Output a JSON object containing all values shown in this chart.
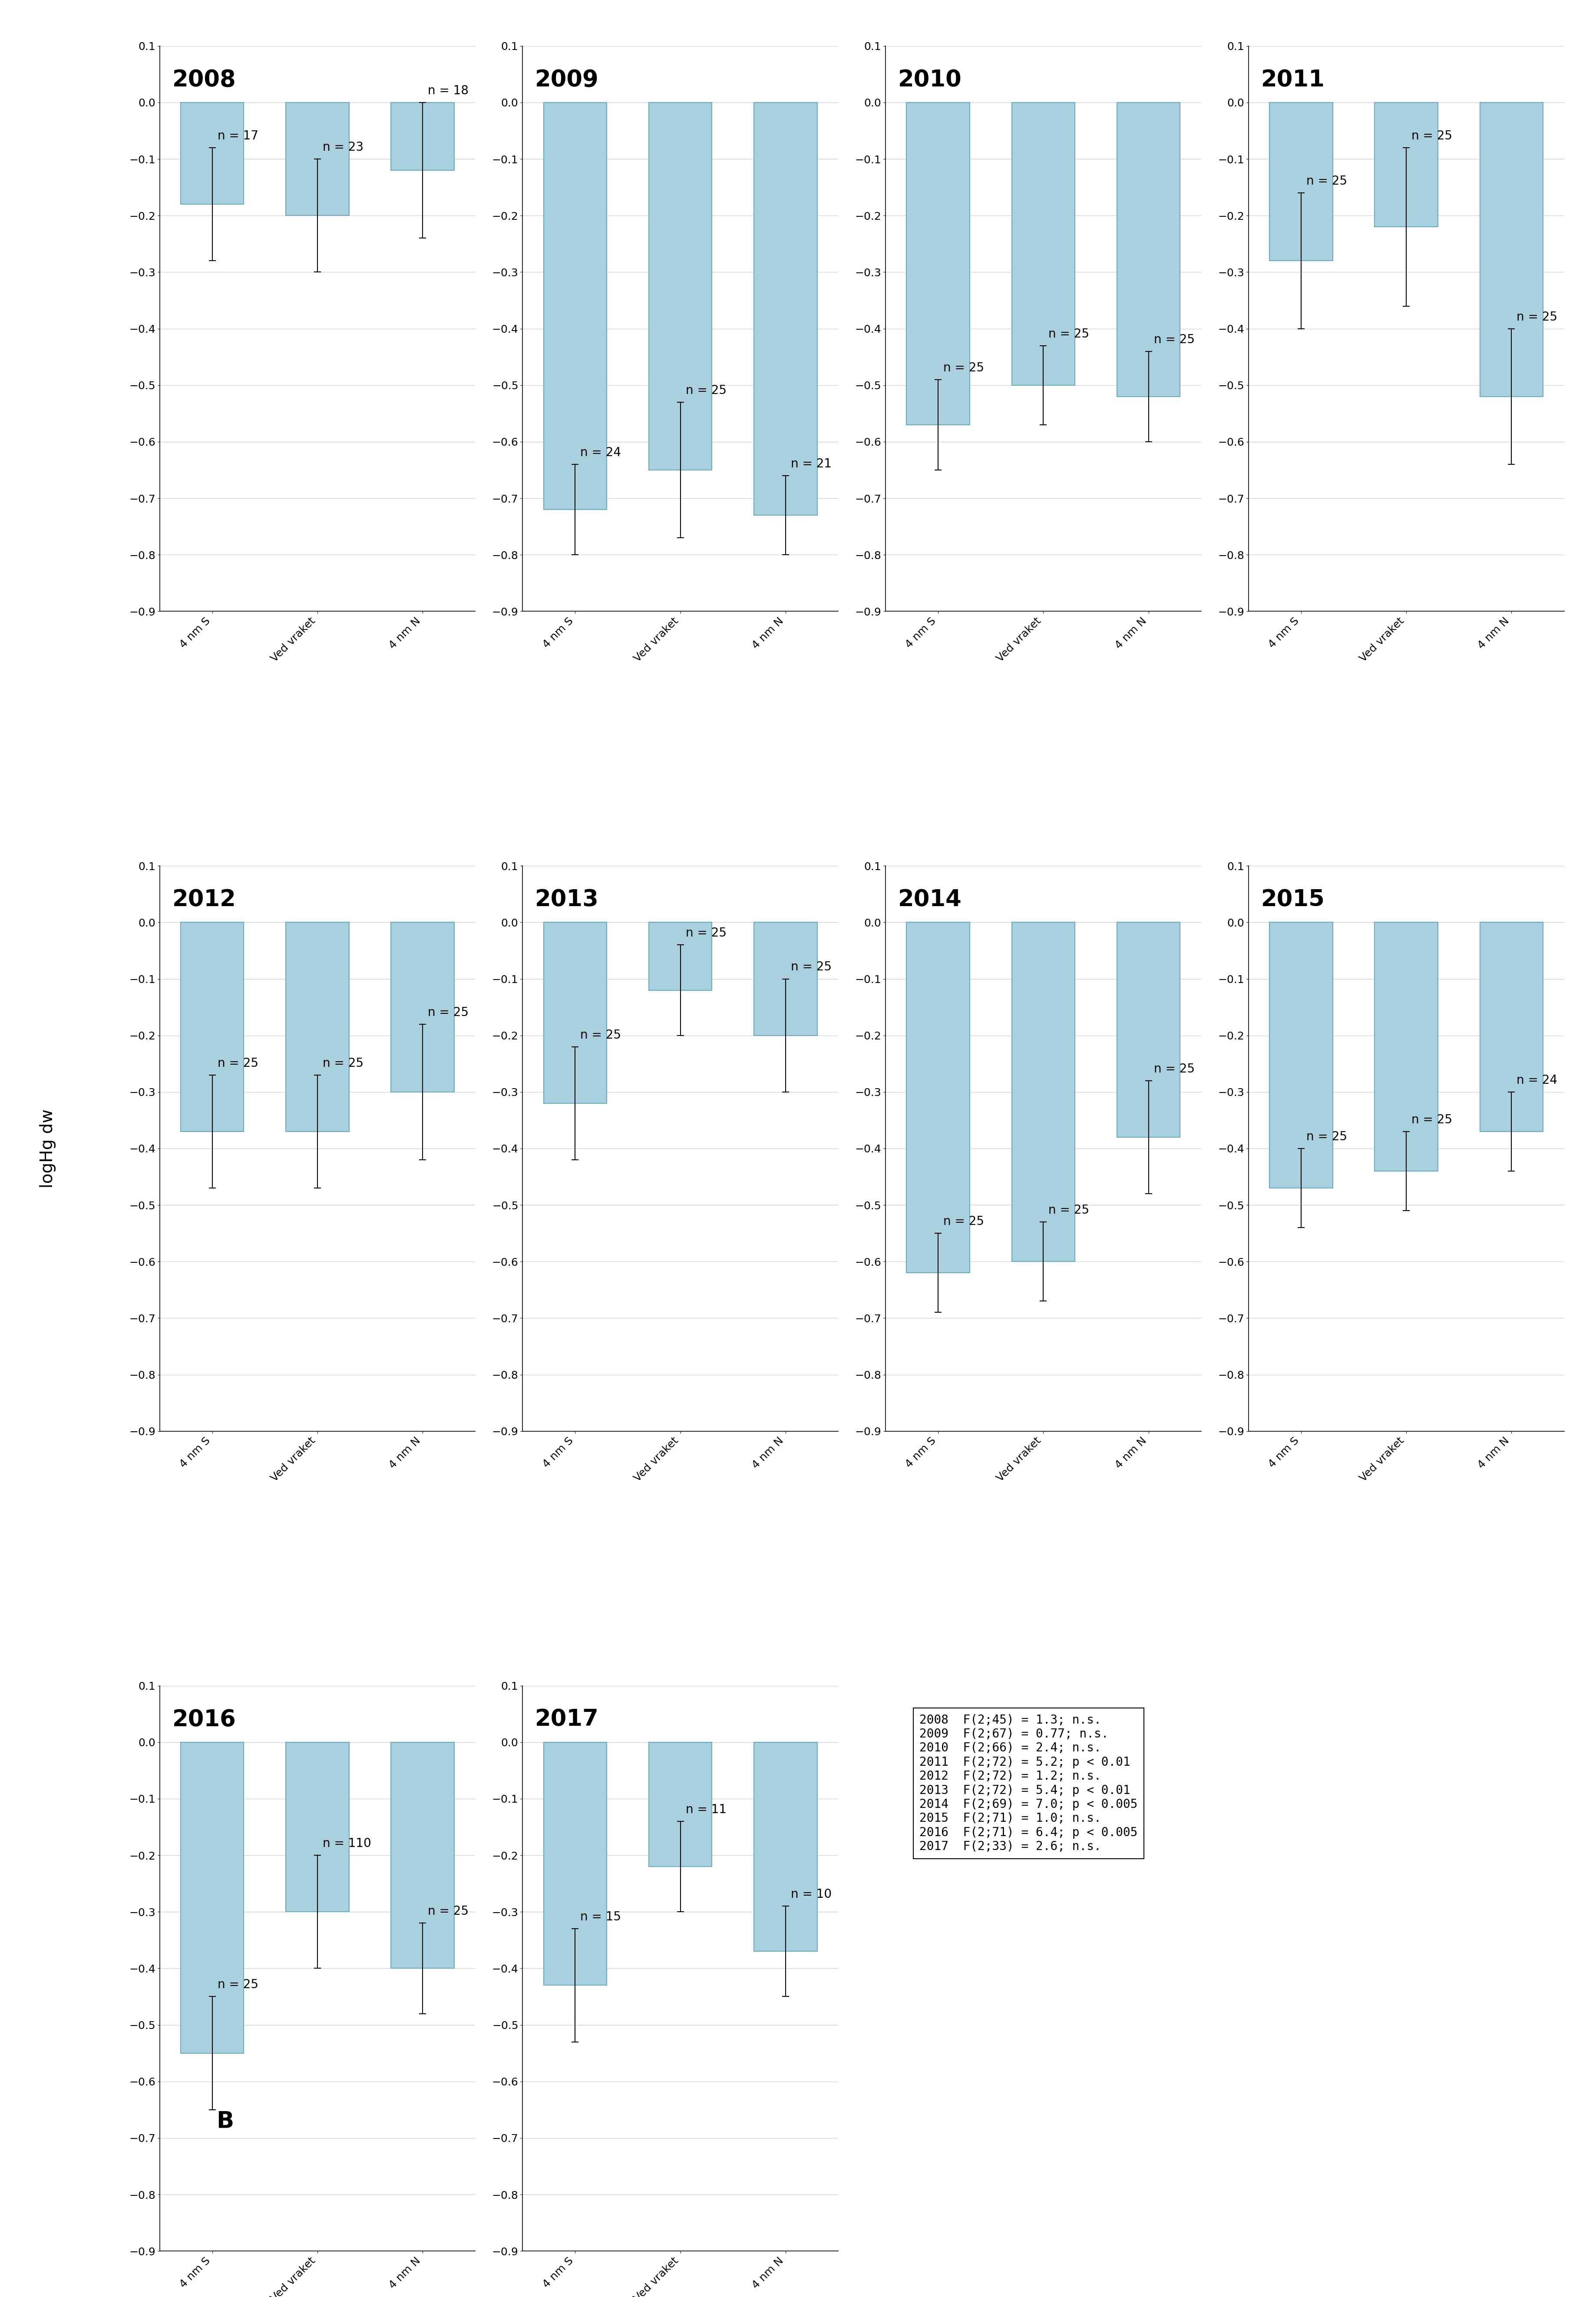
{
  "years": [
    2008,
    2009,
    2010,
    2011,
    2012,
    2013,
    2014,
    2015,
    2016,
    2017
  ],
  "categories": [
    "4 nm S",
    "Ved vraket",
    "4 nm N"
  ],
  "bar_values": {
    "2008": [
      -0.18,
      -0.2,
      -0.12
    ],
    "2009": [
      -0.72,
      -0.65,
      -0.73
    ],
    "2010": [
      -0.57,
      -0.5,
      -0.52
    ],
    "2011": [
      -0.28,
      -0.22,
      -0.52
    ],
    "2012": [
      -0.37,
      -0.37,
      -0.3
    ],
    "2013": [
      -0.32,
      -0.12,
      -0.2
    ],
    "2014": [
      -0.62,
      -0.6,
      -0.38
    ],
    "2015": [
      -0.47,
      -0.44,
      -0.37
    ],
    "2016": [
      -0.55,
      -0.3,
      -0.4
    ],
    "2017": [
      -0.43,
      -0.22,
      -0.37
    ]
  },
  "error_values": {
    "2008": [
      0.1,
      0.1,
      0.12
    ],
    "2009": [
      0.08,
      0.12,
      0.07
    ],
    "2010": [
      0.08,
      0.07,
      0.08
    ],
    "2011": [
      0.12,
      0.14,
      0.12
    ],
    "2012": [
      0.1,
      0.1,
      0.12
    ],
    "2013": [
      0.1,
      0.08,
      0.1
    ],
    "2014": [
      0.07,
      0.07,
      0.1
    ],
    "2015": [
      0.07,
      0.07,
      0.07
    ],
    "2016": [
      0.1,
      0.1,
      0.08
    ],
    "2017": [
      0.1,
      0.08,
      0.08
    ]
  },
  "n_values": {
    "2008": [
      17,
      23,
      18
    ],
    "2009": [
      24,
      25,
      21
    ],
    "2010": [
      25,
      25,
      25
    ],
    "2011": [
      25,
      25,
      25
    ],
    "2012": [
      25,
      25,
      25
    ],
    "2013": [
      25,
      25,
      25
    ],
    "2014": [
      25,
      25,
      25
    ],
    "2015": [
      25,
      25,
      24
    ],
    "2016": [
      25,
      110,
      25
    ],
    "2017": [
      15,
      11,
      10
    ]
  },
  "stats_text": [
    "2008  F(2;45) = 1.3; n.s.",
    "2009  F(2;67) = 0.77; n.s.",
    "2010  F(2;66) = 2.4; n.s.",
    "2011  F(2;72) = 5.2; p < 0.01",
    "2012  F(2;72) = 1.2; n.s.",
    "2013  F(2;72) = 5.4; p < 0.01",
    "2014  F(2;69) = 7.0; p < 0.005",
    "2015  F(2;71) = 1.0; n.s.",
    "2016  F(2;71) = 6.4; p < 0.005",
    "2017  F(2;33) = 2.6; n.s."
  ],
  "bar_color": "#a8d0df",
  "bar_edgecolor": "#6baac0",
  "ylim": [
    -0.9,
    0.1
  ],
  "yticks": [
    -0.9,
    -0.8,
    -0.7,
    -0.6,
    -0.5,
    -0.4,
    -0.3,
    -0.2,
    -0.1,
    0.0,
    0.1
  ],
  "ylabel": "logHg dw",
  "background_color": "#ffffff",
  "grid_color": "#cccccc",
  "year_fontsize": 38,
  "n_fontsize": 20,
  "ylabel_fontsize": 28,
  "tick_fontsize": 18,
  "xtick_fontsize": 18,
  "stats_fontsize": 20,
  "special_label": "B",
  "special_label_year": "2016"
}
